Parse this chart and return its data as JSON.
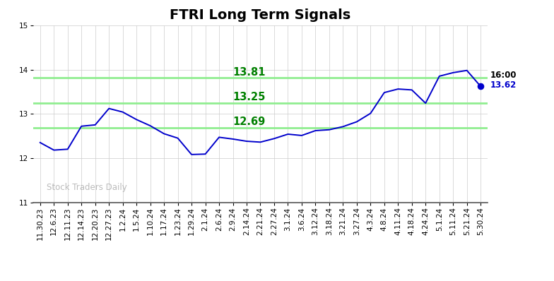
{
  "title": "FTRI Long Term Signals",
  "xlabels": [
    "11.30.23",
    "12.6.23",
    "12.11.23",
    "12.14.23",
    "12.20.23",
    "12.27.23",
    "1.2.24",
    "1.5.24",
    "1.10.24",
    "1.17.24",
    "1.23.24",
    "1.29.24",
    "2.1.24",
    "2.6.24",
    "2.9.24",
    "2.14.24",
    "2.21.24",
    "2.27.24",
    "3.1.24",
    "3.6.24",
    "3.12.24",
    "3.18.24",
    "3.21.24",
    "3.27.24",
    "4.3.24",
    "4.8.24",
    "4.11.24",
    "4.18.24",
    "4.24.24",
    "5.1.24",
    "5.11.24",
    "5.21.24",
    "5.30.24"
  ],
  "yvalues": [
    12.35,
    12.18,
    12.2,
    12.72,
    12.75,
    13.12,
    13.04,
    12.87,
    12.73,
    12.55,
    12.45,
    12.08,
    12.09,
    12.47,
    12.43,
    12.38,
    12.36,
    12.44,
    12.54,
    12.51,
    12.62,
    12.64,
    12.71,
    12.82,
    13.01,
    13.48,
    13.56,
    13.54,
    13.24,
    13.85,
    13.93,
    13.98,
    13.62
  ],
  "hlines": [
    13.81,
    13.25,
    12.69
  ],
  "hline_labels": [
    "13.81",
    "13.25",
    "12.69"
  ],
  "hline_color": "#90EE90",
  "hline_label_color": "#008000",
  "line_color": "#0000CC",
  "last_value": 13.62,
  "last_label": "16:00",
  "last_label_color": "#000000",
  "last_value_color": "#0000CC",
  "watermark": "Stock Traders Daily",
  "ylim": [
    11,
    15
  ],
  "yticks": [
    11,
    12,
    13,
    14,
    15
  ],
  "bg_color": "#ffffff",
  "grid_color": "#cccccc",
  "title_fontsize": 14,
  "tick_fontsize": 7.5
}
